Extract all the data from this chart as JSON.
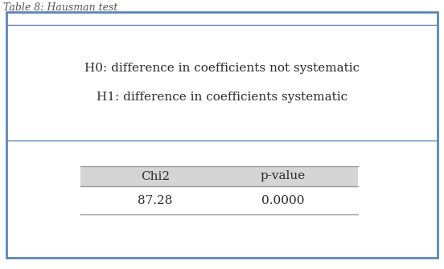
{
  "caption": "Table 8: Hausman test",
  "h0_text": "H0: difference in coefficients not systematic",
  "h1_text": "H1: difference in coefficients systematic",
  "col_headers": [
    "Chi2",
    "p-value"
  ],
  "col_values": [
    "87.28",
    "0.0000"
  ],
  "outer_border_color": "#5b86b8",
  "line_color": "#999999",
  "header_bg_color": "#d5d5d5",
  "body_bg_color": "#ffffff",
  "text_color": "#2c2c2c",
  "caption_color": "#555555",
  "font_size": 11,
  "caption_font_size": 9,
  "fig_width": 5.52,
  "fig_height": 3.35,
  "dpi": 100
}
